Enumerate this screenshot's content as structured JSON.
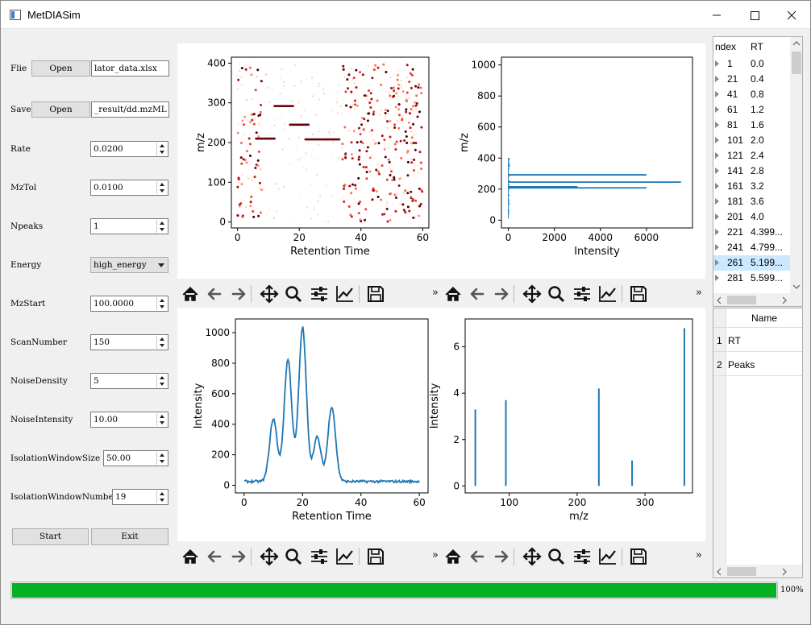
{
  "window": {
    "title": "MetDIASim"
  },
  "left_panel": {
    "file_label": "Flie",
    "file_open": "Open",
    "file_value": "lator_data.xlsx",
    "save_label": "Save",
    "save_open": "Open",
    "save_value": "_result/dd.mzML",
    "rate_label": "Rate",
    "rate_value": "0.0200",
    "mztol_label": "MzTol",
    "mztol_value": "0.0100",
    "npeaks_label": "Npeaks",
    "npeaks_value": "1",
    "energy_label": "Energy",
    "energy_value": "high_energy",
    "mzstart_label": "MzStart",
    "mzstart_value": "100.0000",
    "scannumber_label": "ScanNumber",
    "scannumber_value": "150",
    "noisedensity_label": "NoiseDensity",
    "noisedensity_value": "5",
    "noiseintensity_label": "NoiseIntensity",
    "noiseintensity_value": "10.00",
    "isowinsize_label": "IsolationWindowSize",
    "isowinsize_value": "50.00",
    "isowinnumber_label": "IsolationWindowNumber",
    "isowinnumber_value": "19",
    "start_label": "Start",
    "exit_label": "Exit"
  },
  "toolbar": {
    "more": "»"
  },
  "tree": {
    "headers": [
      "ndex",
      "RT"
    ],
    "rows": [
      [
        "1",
        "0.0"
      ],
      [
        "21",
        "0.4"
      ],
      [
        "41",
        "0.8"
      ],
      [
        "61",
        "1.2"
      ],
      [
        "81",
        "1.6"
      ],
      [
        "101",
        "2.0"
      ],
      [
        "121",
        "2.4"
      ],
      [
        "141",
        "2.8"
      ],
      [
        "161",
        "3.2"
      ],
      [
        "181",
        "3.6"
      ],
      [
        "201",
        "4.0"
      ],
      [
        "221",
        "4.399..."
      ],
      [
        "241",
        "4.799..."
      ],
      [
        "261",
        "5.199..."
      ],
      [
        "281",
        "5.599..."
      ]
    ],
    "selected_index": 13
  },
  "table2": {
    "header": "Name",
    "rows": [
      {
        "num": "1",
        "name": "RT"
      },
      {
        "num": "2",
        "name": "Peaks"
      }
    ]
  },
  "progress": {
    "value": 100,
    "label": "100%"
  },
  "chart_data": [
    {
      "type": "scatter",
      "xlabel": "Retention Time",
      "ylabel": "m/z",
      "xticks": [
        0,
        20,
        40,
        60
      ],
      "yticks": [
        0,
        100,
        200,
        300,
        400
      ],
      "xlim": [
        -2,
        62
      ],
      "ylim": [
        -15,
        415
      ],
      "segments": [
        {
          "x": [
            6,
            12
          ],
          "y": 210
        },
        {
          "x": [
            12,
            18
          ],
          "y": 292
        },
        {
          "x": [
            17,
            23
          ],
          "y": 245
        },
        {
          "x": [
            22,
            33
          ],
          "y": 208
        }
      ]
    },
    {
      "type": "bar",
      "orientation": "horizontal",
      "xlabel": "Intensity",
      "ylabel": "m/z",
      "xticks": [
        0,
        2000,
        4000,
        6000
      ],
      "yticks": [
        0,
        200,
        400,
        600,
        800,
        1000
      ],
      "xlim": [
        -300,
        8000
      ],
      "ylim": [
        -50,
        1050
      ],
      "bars": [
        {
          "y": 292,
          "x": 6000
        },
        {
          "y": 245,
          "x": 7500
        },
        {
          "y": 215,
          "x": 3000
        },
        {
          "y": 208,
          "x": 6000
        }
      ]
    },
    {
      "type": "line",
      "xlabel": "Retention Time",
      "ylabel": "Intensity",
      "xticks": [
        0,
        20,
        40,
        60
      ],
      "yticks": [
        0,
        200,
        400,
        600,
        800,
        1000
      ],
      "xlim": [
        -3,
        63
      ],
      "ylim": [
        -50,
        1090
      ],
      "peaks": [
        {
          "center": 10,
          "height": 410
        },
        {
          "center": 15,
          "height": 800
        },
        {
          "center": 20,
          "height": 1010
        },
        {
          "center": 25,
          "height": 290
        },
        {
          "center": 30,
          "height": 490
        }
      ],
      "baseline": 25
    },
    {
      "type": "bar",
      "xlabel": "m/z",
      "ylabel": "Intensity",
      "xticks": [
        100,
        200,
        300
      ],
      "yticks": [
        0,
        2,
        4,
        6
      ],
      "xlim": [
        35,
        370
      ],
      "ylim": [
        -0.3,
        7.2
      ],
      "x": [
        50,
        95,
        232,
        281,
        358
      ],
      "values": [
        3.3,
        3.7,
        4.2,
        1.1,
        6.8
      ]
    }
  ]
}
